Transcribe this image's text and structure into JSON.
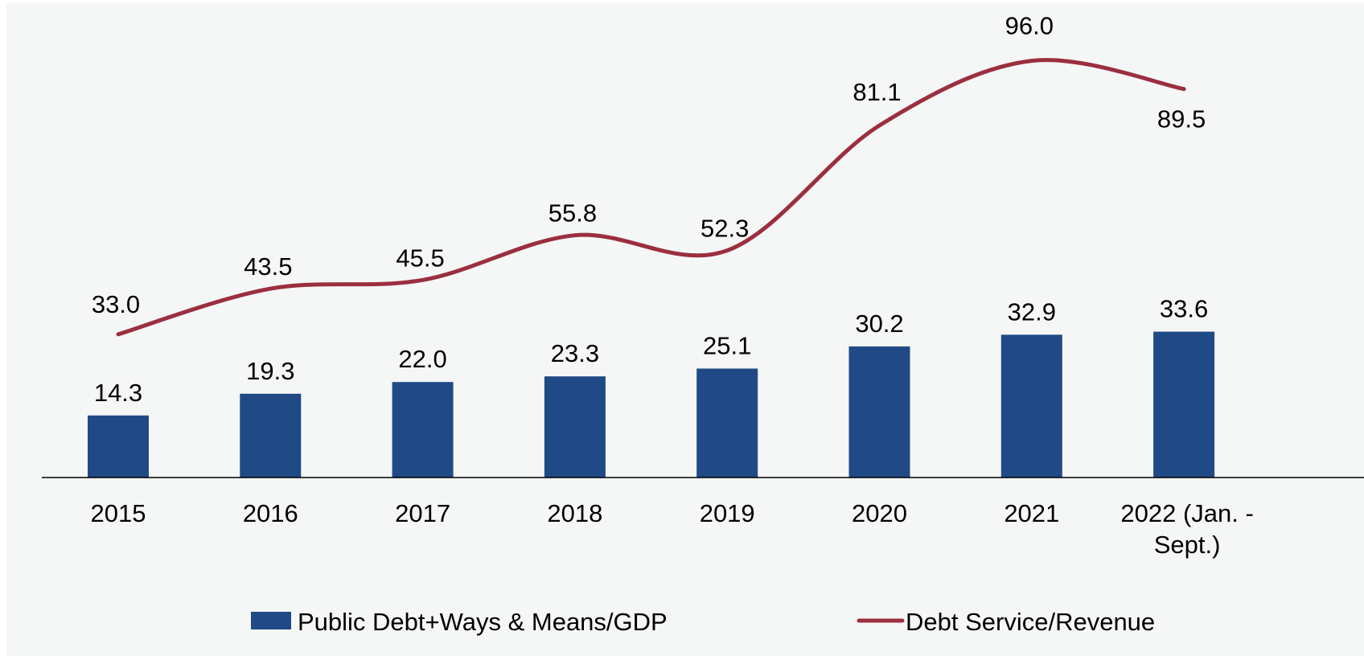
{
  "chart_data": {
    "type": "bar",
    "categories": [
      "2015",
      "2016",
      "2017",
      "2018",
      "2019",
      "2020",
      "2021",
      "2022 (Jan. - Sept.)"
    ],
    "category_label_lines": [
      [
        "2015"
      ],
      [
        "2016"
      ],
      [
        "2017"
      ],
      [
        "2018"
      ],
      [
        "2019"
      ],
      [
        "2020"
      ],
      [
        "2021"
      ],
      [
        "2022 (Jan. -",
        "Sept.)"
      ]
    ],
    "series": [
      {
        "name": "Public Debt+Ways & Means/GDP",
        "kind": "bar",
        "color": "#1f4a86",
        "values": [
          14.3,
          19.3,
          22.0,
          23.3,
          25.1,
          30.2,
          32.9,
          33.6
        ],
        "labels": [
          "14.3",
          "19.3",
          "22.0",
          "23.3",
          "25.1",
          "30.2",
          "32.9",
          "33.6"
        ]
      },
      {
        "name": "Debt Service/Revenue",
        "kind": "line",
        "color": "#9b2f3f",
        "smooth": true,
        "values": [
          33.0,
          43.5,
          45.5,
          55.8,
          52.3,
          81.1,
          96.0,
          89.5
        ],
        "labels": [
          "33.0",
          "43.5",
          "45.5",
          "55.8",
          "52.3",
          "81.1",
          "96.0",
          "89.5"
        ]
      }
    ],
    "title": "",
    "xlabel": "",
    "ylabel": "",
    "ylim": [
      0,
      105
    ],
    "grid": false,
    "legend": "bottom",
    "background": "#f5f6f6"
  }
}
